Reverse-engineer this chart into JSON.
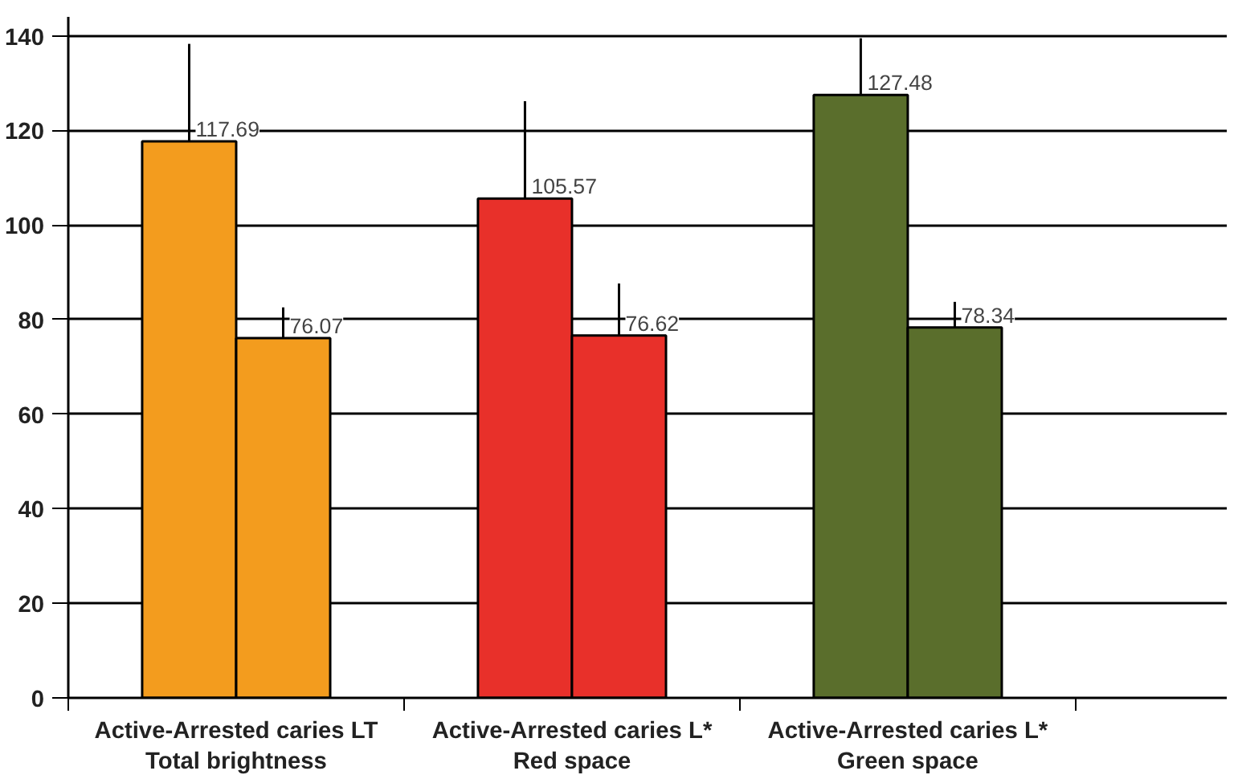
{
  "chart_data": {
    "type": "bar",
    "categories": [
      "Active-Arrested caries LT\nTotal brightness",
      "Active-Arrested caries L*\nRed space",
      "Active-Arrested caries L*\nGreen space"
    ],
    "series": [
      {
        "colors": [
          "#f39c1e",
          "#e8302a",
          "#5a6e2c"
        ],
        "values": [
          117.69,
          105.57,
          127.48
        ],
        "errors": [
          20.6,
          20.6,
          12
        ]
      },
      {
        "colors": [
          "#f39c1e",
          "#e8302a",
          "#5a6e2c"
        ],
        "values": [
          76.07,
          76.62,
          78.34
        ],
        "errors": [
          6.5,
          11,
          5.4
        ]
      }
    ],
    "ylim": [
      0,
      144
    ],
    "yticks": [
      0,
      20,
      40,
      60,
      80,
      100,
      120,
      140
    ],
    "grid": "y",
    "data_labels": true
  }
}
